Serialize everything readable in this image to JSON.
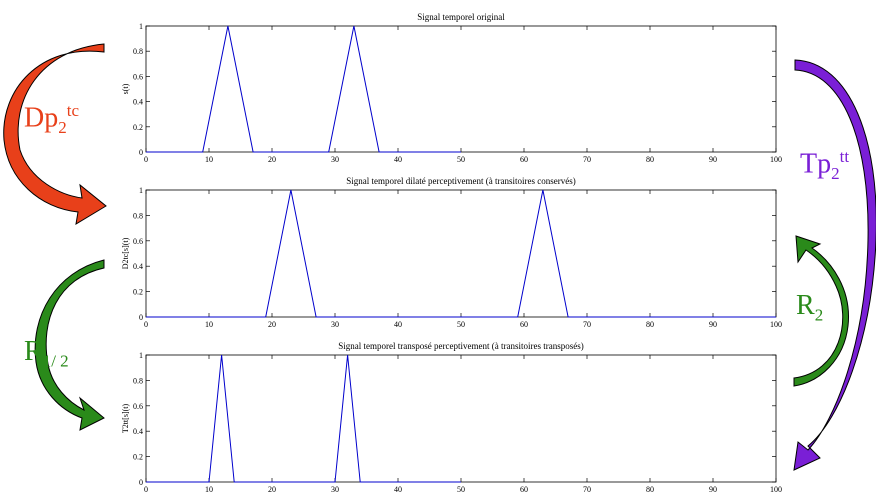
{
  "colors": {
    "line": "#0000cc",
    "arrow_dp": "#e8401a",
    "arrow_tp": "#7a1fd6",
    "arrow_r": "#2a8a1a",
    "label_dp": "#e8401a",
    "label_tp": "#7a1fd6",
    "label_r": "#2a8a1a"
  },
  "arrows": {
    "dp": {
      "base": "Dp",
      "sub": "2",
      "sup": "tc",
      "icon": "curved-arrow-icon"
    },
    "tp": {
      "base": "Tp",
      "sub": "2",
      "sup": "tt",
      "icon": "curved-arrow-icon"
    },
    "r2": {
      "base": "R",
      "sub": "2",
      "icon": "curved-arrow-icon"
    },
    "r12": {
      "base": "R",
      "sub": "1/ 2",
      "icon": "curved-arrow-icon"
    }
  },
  "chart_data": [
    {
      "type": "line",
      "title": "Signal temporel original",
      "ylabel": "s(t)",
      "xlabel": "",
      "xlim": [
        0,
        100
      ],
      "ylim": [
        0,
        1
      ],
      "xticks": [
        0,
        10,
        20,
        30,
        40,
        50,
        60,
        70,
        80,
        90,
        100
      ],
      "yticks": [
        0,
        0.2,
        0.4,
        0.6,
        0.8,
        1
      ],
      "ytick_labels": [
        "0",
        "0.2",
        "0.4",
        "0.6",
        "0.8",
        "1"
      ],
      "grid": false,
      "series": [
        {
          "x": [
            0,
            9,
            13,
            17,
            29,
            33,
            37,
            50
          ],
          "y": [
            0,
            0,
            1,
            0,
            0,
            1,
            0,
            0
          ]
        }
      ]
    },
    {
      "type": "line",
      "title": "Signal temporel dilaté perceptivement (à transitoires conservés)",
      "ylabel": "D2tc[s](t)",
      "xlabel": "",
      "xlim": [
        0,
        100
      ],
      "ylim": [
        0,
        1
      ],
      "xticks": [
        0,
        10,
        20,
        30,
        40,
        50,
        60,
        70,
        80,
        90,
        100
      ],
      "yticks": [
        0,
        0.2,
        0.4,
        0.6,
        0.8,
        1
      ],
      "ytick_labels": [
        "0",
        "0.2",
        "0.4",
        "0.6",
        "0.8",
        "1"
      ],
      "grid": false,
      "series": [
        {
          "x": [
            0,
            19,
            23,
            27,
            59,
            63,
            67,
            100
          ],
          "y": [
            0,
            0,
            1,
            0,
            0,
            1,
            0,
            0
          ]
        }
      ]
    },
    {
      "type": "line",
      "title": "Signal temporel transposé perceptivement (à transitoires transposés)",
      "ylabel": "T2tt[s](t)",
      "xlabel": "",
      "xlim": [
        0,
        100
      ],
      "ylim": [
        0,
        1
      ],
      "xticks": [
        0,
        10,
        20,
        30,
        40,
        50,
        60,
        70,
        80,
        90,
        100
      ],
      "yticks": [
        0,
        0.2,
        0.4,
        0.6,
        0.8,
        1
      ],
      "ytick_labels": [
        "0",
        "0.2",
        "0.4",
        "0.6",
        "0.8",
        "1"
      ],
      "grid": false,
      "series": [
        {
          "x": [
            0,
            10,
            12,
            14,
            30,
            32,
            34,
            50
          ],
          "y": [
            0,
            0,
            1,
            0,
            0,
            1,
            0,
            0
          ]
        }
      ]
    }
  ]
}
